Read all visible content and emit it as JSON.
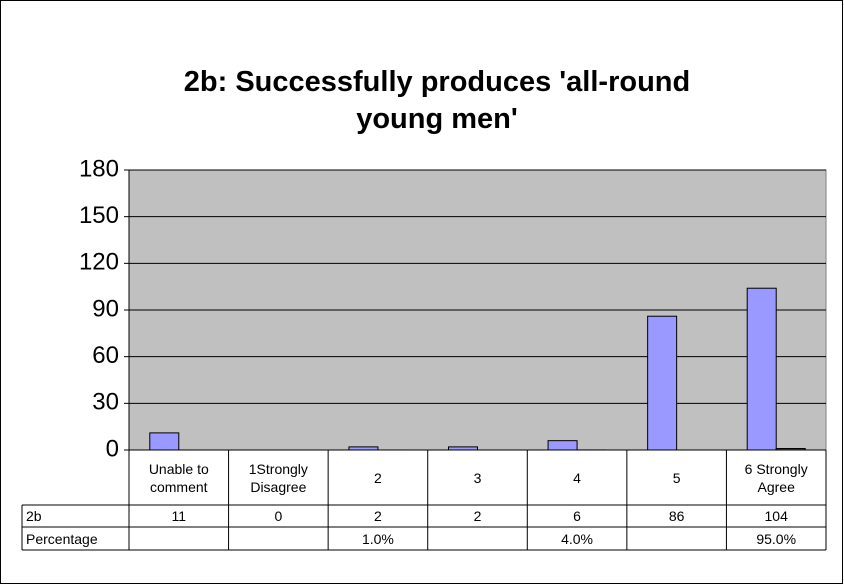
{
  "chart_data": {
    "type": "bar",
    "title": "2b: Successfully produces 'all-round young men'",
    "categories": [
      "Unable to comment",
      "1Strongly Disagree",
      "2",
      "3",
      "4",
      "5",
      "6 Strongly Agree"
    ],
    "series": [
      {
        "name": "2b",
        "color": "#9999ff",
        "values": [
          11,
          0,
          2,
          2,
          6,
          86,
          104
        ]
      },
      {
        "name": "Percentage",
        "color": "#993366",
        "values": [
          null,
          null,
          0.01,
          null,
          0.04,
          null,
          0.95
        ],
        "value_labels": [
          null,
          null,
          "1.0%",
          null,
          "4.0%",
          null,
          "95.0%"
        ]
      }
    ],
    "ylim": [
      0,
      180
    ],
    "yticks": [
      0,
      30,
      60,
      90,
      120,
      150,
      180
    ],
    "grid": true,
    "plot_background": "#c0c0c0"
  }
}
